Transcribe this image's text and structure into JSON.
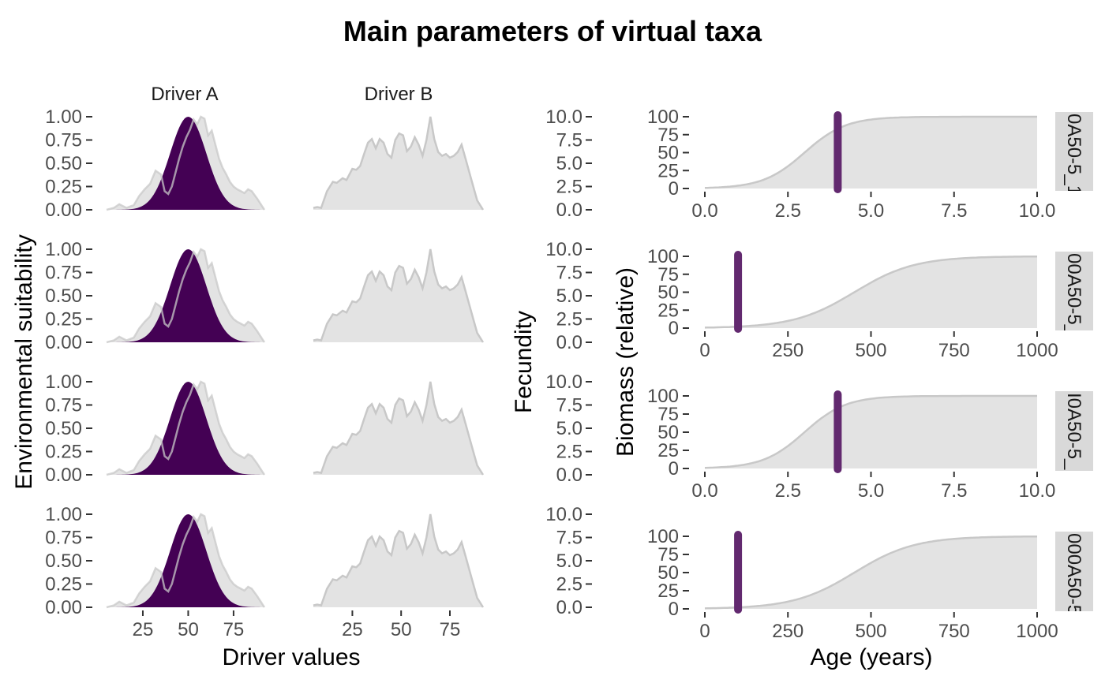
{
  "chart_data": {
    "type": "area",
    "title": "Main parameters of virtual taxa",
    "colors": {
      "suitability_fill": "#440154",
      "density_fill": "#e3e3e3",
      "density_line": "#c8c8c8",
      "fecundity_bar": "#62296f",
      "strip_bg": "#d9d9d9"
    },
    "panels_left": {
      "xlabel": "Driver values",
      "ylabel": "Environmental suitability",
      "strips": [
        "Driver A",
        "Driver B"
      ],
      "xlim": [
        5,
        92
      ],
      "x_ticks": [
        25,
        50,
        75
      ],
      "ylim": [
        0,
        1
      ],
      "y_ticks": [
        "0.00",
        "0.25",
        "0.50",
        "0.75",
        "1.00"
      ],
      "suitability": {
        "type": "gaussian",
        "mean": 50,
        "sd": 10
      },
      "driver_A_density": {
        "x": [
          5,
          9,
          12,
          16,
          20,
          23,
          26,
          29,
          32,
          35,
          37,
          39,
          41,
          43,
          45,
          47,
          49,
          51,
          53,
          55,
          57,
          59,
          61,
          63,
          65,
          67,
          69,
          71,
          73,
          75,
          77,
          79,
          81,
          83,
          85,
          88,
          92
        ],
        "y": [
          0.0,
          0.02,
          0.06,
          0.02,
          0.05,
          0.15,
          0.22,
          0.28,
          0.42,
          0.38,
          0.2,
          0.17,
          0.25,
          0.4,
          0.55,
          0.68,
          0.78,
          0.86,
          0.97,
          0.92,
          1.0,
          0.98,
          0.8,
          0.85,
          0.7,
          0.55,
          0.45,
          0.38,
          0.3,
          0.25,
          0.22,
          0.2,
          0.18,
          0.22,
          0.2,
          0.12,
          0.0
        ]
      },
      "driver_B_density": {
        "x": [
          5,
          7,
          9,
          12,
          15,
          17,
          20,
          22,
          25,
          27,
          29,
          31,
          33,
          35,
          37,
          39,
          41,
          43,
          45,
          47,
          49,
          51,
          53,
          55,
          57,
          59,
          61,
          63,
          65,
          67,
          69,
          71,
          73,
          75,
          77,
          79,
          81,
          83,
          85,
          87,
          89,
          92
        ],
        "y": [
          0.02,
          0.03,
          0.02,
          0.2,
          0.3,
          0.29,
          0.34,
          0.32,
          0.44,
          0.43,
          0.47,
          0.6,
          0.72,
          0.76,
          0.66,
          0.76,
          0.72,
          0.6,
          0.56,
          0.75,
          0.82,
          0.8,
          0.63,
          0.68,
          0.78,
          0.7,
          0.58,
          0.75,
          1.0,
          0.76,
          0.62,
          0.58,
          0.6,
          0.56,
          0.58,
          0.62,
          0.7,
          0.55,
          0.4,
          0.25,
          0.1,
          0.0
        ]
      }
    },
    "panels_fecundity": {
      "ylabel": "Fecundity",
      "ylim": [
        0,
        10
      ],
      "y_ticks": [
        "0.0",
        "2.5",
        "5.0",
        "7.5",
        "10.0"
      ]
    },
    "panels_biomass": {
      "xlabel": "Age (years)",
      "ylabel": "Biomass (relative)",
      "ylim": [
        0,
        100
      ],
      "y_ticks": [
        "0",
        "25",
        "50",
        "75",
        "100"
      ],
      "rows": [
        {
          "strip": "0A50-5_1",
          "xlim": [
            0,
            10
          ],
          "x_ticks": [
            "0.0",
            "2.5",
            "5.0",
            "7.5",
            "10.0"
          ],
          "marker_age": 4,
          "growth_midpoint": 3.0,
          "growth_rate": 1.6
        },
        {
          "strip": "00A50-5_",
          "xlim": [
            0,
            1000
          ],
          "x_ticks": [
            "0",
            "250",
            "500",
            "750",
            "1000"
          ],
          "marker_age": 100,
          "growth_midpoint": 450,
          "growth_rate": 0.011
        },
        {
          "strip": "I0A50-5_",
          "xlim": [
            0,
            10
          ],
          "x_ticks": [
            "0.0",
            "2.5",
            "5.0",
            "7.5",
            "10.0"
          ],
          "marker_age": 4,
          "growth_midpoint": 3.0,
          "growth_rate": 1.6
        },
        {
          "strip": "000A50-5",
          "xlim": [
            0,
            1000
          ],
          "x_ticks": [
            "0",
            "250",
            "500",
            "750",
            "1000"
          ],
          "marker_age": 100,
          "growth_midpoint": 450,
          "growth_rate": 0.011
        }
      ]
    }
  }
}
